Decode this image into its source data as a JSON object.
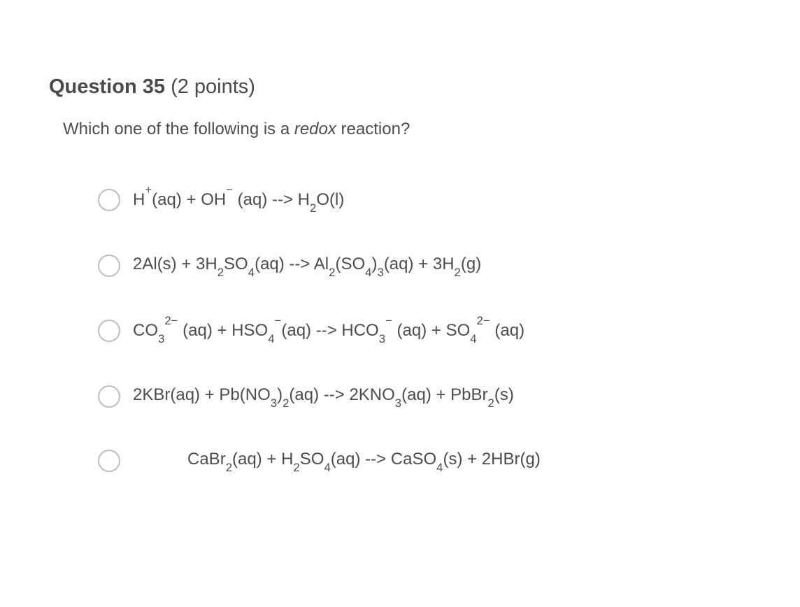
{
  "header": {
    "label": "Question 35",
    "points": "(2 points)"
  },
  "prompt": {
    "pre": "Which one of the following is a ",
    "word": "redox",
    "post": " reaction?"
  },
  "options": [
    {
      "html": "H<sup>+</sup>(aq) + OH<sup>−</sup> (aq) --> H<sub>2</sub>O(l)"
    },
    {
      "html": "2Al(s) + 3H<sub>2</sub>SO<sub>4</sub>(aq) --> Al<sub>2</sub>(SO<sub>4</sub>)<sub>3</sub>(aq) + 3H<sub>2</sub>(g)"
    },
    {
      "html": "CO<sub>3</sub><sup>2−</sup> (aq) + HSO<sub>4</sub><sup>−</sup>(aq) --> HCO<sub>3</sub><sup>−</sup> (aq) + SO<sub>4</sub><sup>2−</sup> (aq)"
    },
    {
      "html": "2KBr(aq) + Pb(NO<sub>3</sub>)<sub>2</sub>(aq) --> 2KNO<sub>3</sub>(aq) + PbBr<sub>2</sub>(s)"
    },
    {
      "html": "CaBr<sub>2</sub>(aq) + H<sub>2</sub>SO<sub>4</sub>(aq) --> CaSO<sub>4</sub>(s) + 2HBr(g)",
      "indent": true
    }
  ],
  "colors": {
    "background": "#ffffff",
    "text": "#4d4d4d",
    "radio_border": "#bdbdbd"
  },
  "typography": {
    "header_fontsize": 29,
    "prompt_fontsize": 24,
    "option_fontsize": 24
  }
}
